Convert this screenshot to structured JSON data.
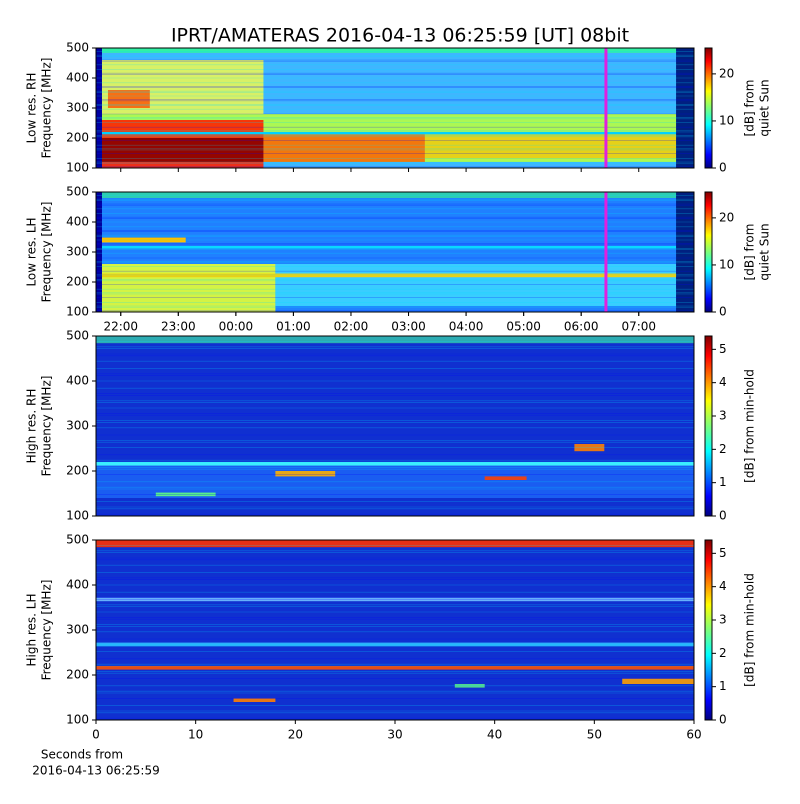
{
  "title": "IPRT/AMATERAS 2016-04-13 06:25:59 [UT]   08bit",
  "chart_data": [
    {
      "type": "heatmap",
      "y_label": [
        "Low res. RH",
        "Frequency [MHz]"
      ],
      "ylim": [
        100,
        500
      ],
      "yticks": [
        100,
        200,
        300,
        400,
        500
      ],
      "xlim": [
        21.57,
        31.96
      ],
      "xticks": [],
      "marker_x": 30.43,
      "marker_color": "#e020e0",
      "colormap": "jet",
      "colorbar_label": [
        "[dB] from",
        "quiet Sun"
      ],
      "clim": [
        0,
        25.5
      ],
      "cticks": [
        0,
        10,
        20
      ]
    },
    {
      "type": "heatmap",
      "y_label": [
        "Low res. LH",
        "Frequency [MHz]"
      ],
      "ylim": [
        100,
        500
      ],
      "yticks": [
        100,
        200,
        300,
        400,
        500
      ],
      "xlim": [
        21.57,
        31.96
      ],
      "xticks": [
        {
          "value": 22,
          "label": "22:00"
        },
        {
          "value": 23,
          "label": "23:00"
        },
        {
          "value": 24,
          "label": "00:00"
        },
        {
          "value": 25,
          "label": "01:00"
        },
        {
          "value": 26,
          "label": "02:00"
        },
        {
          "value": 27,
          "label": "03:00"
        },
        {
          "value": 28,
          "label": "04:00"
        },
        {
          "value": 29,
          "label": "05:00"
        },
        {
          "value": 30,
          "label": "06:00"
        },
        {
          "value": 31,
          "label": "07:00"
        }
      ],
      "marker_x": 30.43,
      "marker_color": "#e020e0",
      "colormap": "jet",
      "colorbar_label": [
        "[dB] from",
        "quiet Sun"
      ],
      "clim": [
        0,
        25.5
      ],
      "cticks": [
        0,
        10,
        20
      ]
    },
    {
      "type": "heatmap",
      "y_label": [
        "High res. RH",
        "Frequency [MHz]"
      ],
      "ylim": [
        100,
        500
      ],
      "yticks": [
        100,
        200,
        300,
        400,
        500
      ],
      "xlim": [
        0,
        60
      ],
      "xticks": [],
      "colormap": "jet",
      "colorbar_label": [
        "[dB] from min-hold"
      ],
      "clim": [
        0,
        5.4
      ],
      "cticks": [
        0,
        1,
        2,
        3,
        4,
        5
      ]
    },
    {
      "type": "heatmap",
      "y_label": [
        "High res. LH",
        "Frequency [MHz]"
      ],
      "ylim": [
        100,
        500
      ],
      "yticks": [
        100,
        200,
        300,
        400,
        500
      ],
      "xlim": [
        0,
        60
      ],
      "xticks": [
        0,
        10,
        20,
        30,
        40,
        50,
        60
      ],
      "x_label": [
        "Seconds from",
        "2016-04-13 06:25:59"
      ],
      "colormap": "jet",
      "colorbar_label": [
        "[dB] from min-hold"
      ],
      "clim": [
        0,
        5.4
      ],
      "cticks": [
        0,
        1,
        2,
        3,
        4,
        5
      ]
    }
  ]
}
